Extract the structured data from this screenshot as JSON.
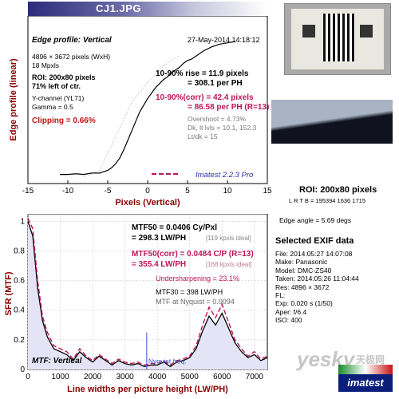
{
  "title": "CJ1.JPG",
  "colors": {
    "curve": "#000000",
    "corr": "#c0145a",
    "gray": "#777777",
    "gridline": "#cccccc",
    "nyquist": "#3355cc",
    "title_bar_dark": "#2c2c7a"
  },
  "edge": {
    "heading": "Edge profile: Vertical",
    "date": "27-May-2014 14:18:12",
    "info": [
      "4896 × 3672 pixels (WxH)",
      "18 Mpxls"
    ],
    "roi": [
      "ROI: 200x80 pixels",
      "71% left of ctr."
    ],
    "ychannel": "Y-channel  (YL71)",
    "gamma": "Gamma = 0.5",
    "clipping": "Clipping =  0.66%",
    "rise1": "10-90% rise = 11.9 pixels",
    "rise2": "= 308.1 per PH",
    "corr1": "10-90%(corr) = 42.4 pixels",
    "corr2": "= 86.58 per PH  (R=13)",
    "overshoot": "Overshoot = 4.73%",
    "dk": "Dk, lt lvls = 10.1, 152.3",
    "ltdk": "Lt/dk = 15",
    "brand": "Imatest 2.2.3 Pro"
  },
  "chart_data": [
    {
      "type": "line",
      "name": "edge-profile",
      "xlabel": "Pixels (Vertical)",
      "ylabel": "Edge profile (linear)",
      "xlim": [
        -15,
        15
      ],
      "xticks": [
        -15,
        -10,
        -5,
        0,
        5,
        10,
        15
      ],
      "series": [
        {
          "name": "edge",
          "x": [
            -11,
            -10,
            -9,
            -8,
            -7,
            -6,
            -5,
            -4.5,
            -4,
            -3.5,
            -3,
            -2.5,
            -2,
            -1.5,
            -1,
            -0.5,
            0,
            0.5,
            1,
            1.5,
            2,
            2.5,
            3,
            3.5,
            4,
            4.5,
            5,
            5.5,
            6,
            7,
            8,
            9,
            10,
            11
          ],
          "y": [
            0.02,
            0.02,
            0.025,
            0.02,
            0.03,
            0.03,
            0.05,
            0.07,
            0.1,
            0.14,
            0.2,
            0.27,
            0.34,
            0.41,
            0.48,
            0.53,
            0.58,
            0.62,
            0.66,
            0.69,
            0.72,
            0.74,
            0.77,
            0.79,
            0.81,
            0.84,
            0.86,
            0.87,
            0.89,
            0.93,
            0.96,
            0.98,
            0.99,
            1.0
          ]
        },
        {
          "name": "edge-dotted",
          "x": [
            -8,
            -6,
            -4,
            -2,
            0,
            2,
            4
          ],
          "y": [
            0.0,
            0.05,
            0.3,
            0.55,
            0.7,
            0.82,
            0.9
          ]
        }
      ]
    },
    {
      "type": "line",
      "name": "mtf",
      "title": "MTF: Vertical",
      "xlabel": "Line widths per picture height (LW/PH)",
      "ylabel": "SFR (MTF)",
      "xlim": [
        0,
        7400
      ],
      "ylim": [
        0,
        1.05
      ],
      "xticks": [
        0,
        1000,
        2000,
        3000,
        4000,
        5000,
        6000,
        7000
      ],
      "yticks": [
        0,
        0.2,
        0.4,
        0.6,
        0.8,
        1
      ],
      "nyquist_x": 3672,
      "nyquist_label": "Nyquist freq.",
      "series": [
        {
          "name": "mtf",
          "x": [
            0,
            150,
            300,
            450,
            600,
            800,
            1000,
            1200,
            1400,
            1600,
            1800,
            2000,
            2200,
            2400,
            2600,
            2800,
            3000,
            3200,
            3400,
            3600,
            3800,
            4000,
            4200,
            4400,
            4600,
            4800,
            5000,
            5200,
            5400,
            5600,
            5800,
            6000,
            6200,
            6400,
            6600,
            6800,
            7000,
            7200,
            7400
          ],
          "y": [
            1.0,
            0.9,
            0.55,
            0.33,
            0.22,
            0.14,
            0.12,
            0.1,
            0.06,
            0.12,
            0.08,
            0.05,
            0.09,
            0.06,
            0.03,
            0.06,
            0.04,
            0.03,
            0.04,
            0.02,
            0.03,
            0.03,
            0.05,
            0.02,
            0.05,
            0.06,
            0.08,
            0.14,
            0.26,
            0.36,
            0.3,
            0.38,
            0.28,
            0.18,
            0.12,
            0.08,
            0.1,
            0.06,
            0.08
          ]
        },
        {
          "name": "mtf-corr",
          "x": [
            0,
            150,
            300,
            450,
            600,
            800,
            1000,
            1200,
            1400,
            1600,
            1800,
            2000,
            2200,
            2400,
            2600,
            2800,
            3000,
            3200,
            3400,
            3600,
            3800,
            4000,
            4200,
            4400,
            4600,
            4800,
            5000,
            5200,
            5400,
            5600,
            5800,
            6000,
            6200,
            6400,
            6600,
            6800,
            7000,
            7200,
            7400
          ],
          "y": [
            1.02,
            0.95,
            0.6,
            0.36,
            0.25,
            0.16,
            0.14,
            0.12,
            0.07,
            0.14,
            0.09,
            0.06,
            0.1,
            0.07,
            0.04,
            0.07,
            0.05,
            0.04,
            0.05,
            0.03,
            0.04,
            0.04,
            0.06,
            0.03,
            0.06,
            0.07,
            0.09,
            0.16,
            0.3,
            0.42,
            0.35,
            0.44,
            0.32,
            0.2,
            0.14,
            0.09,
            0.12,
            0.07,
            0.09
          ]
        }
      ]
    }
  ],
  "mtf": {
    "mtf50": "MTF50 = 0.0406 Cy/Pxl",
    "mtf50b": "= 298.3 LW/PH",
    "mtf50_ideal": "[119 kpxls ideal]",
    "corr": "MTF50(corr) = 0.0484 C/P  (R=13)",
    "corrb": "= 355.4 LW/PH",
    "corr_ideal": "[168 kpxls ideal]",
    "under": "Undersharpening = 23.1%",
    "mtf30": "MTF30 = 398 LW/PH",
    "nyq": "MTF at Nyquist = 0.0094"
  },
  "right": {
    "roi": "ROI: 200x80 pixels",
    "ltrb": "L R  T B = 195394  1636 1715",
    "angle": "Edge angle = 5.69 degs",
    "exif_title": "Selected EXIF data",
    "exif": [
      "File:  2014:05:27  14:07:08",
      "Make:  Panasonic",
      "Model:  DMC-ZS40",
      "Taken:  2014:05:26  11:04:44",
      "Res:    4896 × 3672",
      "FL:",
      "Exp:    0.020 s  (1/50)",
      "Aper:   f/6.4",
      "ISO:    400"
    ],
    "watermark1": "yesky",
    "watermark2": "天极网",
    "logo": "imatest"
  }
}
